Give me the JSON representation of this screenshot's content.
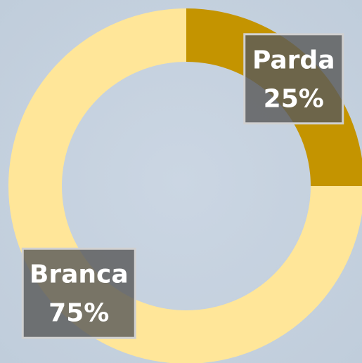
{
  "chart_data": {
    "type": "donut",
    "categories": [
      "Parda",
      "Branca"
    ],
    "values": [
      25,
      75
    ],
    "value_labels": [
      "25%",
      "75%"
    ],
    "colors": [
      "#c49400",
      "#ffe699"
    ]
  }
}
